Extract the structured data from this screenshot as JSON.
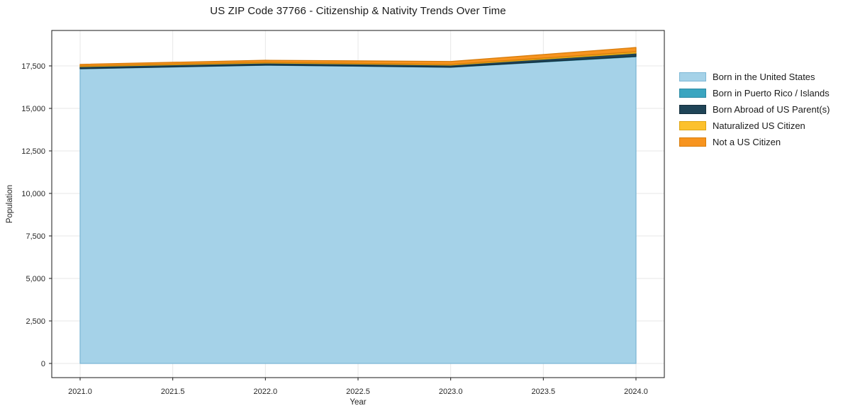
{
  "chart_data": {
    "type": "area",
    "stacked": true,
    "title": "US ZIP Code 37766 - Citizenship & Nativity Trends Over Time",
    "xlabel": "Year",
    "ylabel": "Population",
    "x": [
      2021,
      2022,
      2023,
      2024
    ],
    "series": [
      {
        "name": "Born in the United States",
        "color": "#a5d2e8",
        "edge_color": "#7eb8d6",
        "values": [
          17330,
          17540,
          17420,
          18040
        ]
      },
      {
        "name": "Born in Puerto Rico / Islands",
        "color": "#3aa5c0",
        "edge_color": "#2c8aa4",
        "values": [
          10,
          10,
          10,
          20
        ]
      },
      {
        "name": "Born Abroad of US Parent(s)",
        "color": "#1f4457",
        "edge_color": "#142e3c",
        "values": [
          120,
          120,
          120,
          190
        ]
      },
      {
        "name": "Naturalized US Citizen",
        "color": "#fcc12d",
        "edge_color": "#dfa512",
        "values": [
          40,
          40,
          40,
          80
        ]
      },
      {
        "name": "Not a US Citizen",
        "color": "#f7941f",
        "edge_color": "#d77c0c",
        "values": [
          90,
          120,
          170,
          250
        ]
      }
    ],
    "x_ticks": {
      "values": [
        2021,
        2021.5,
        2022,
        2022.5,
        2023,
        2023.5,
        2024
      ],
      "labels": [
        "2021.0",
        "2021.5",
        "2022.0",
        "2022.5",
        "2023.0",
        "2023.5",
        "2024.0"
      ]
    },
    "y_ticks": {
      "values": [
        0,
        2500,
        5000,
        7500,
        10000,
        12500,
        15000,
        17500
      ],
      "labels": [
        "0",
        "2,500",
        "5,000",
        "7,500",
        "10,000",
        "12,500",
        "15,000",
        "17,500"
      ]
    },
    "xlim": [
      2020.69,
      2024.31
    ],
    "ylim": [
      -835,
      19585
    ],
    "grid": true,
    "grid_color": "#e7e7e7",
    "axis_color": "#1a1a1a",
    "text_color": "#262626",
    "legend_position": "right"
  }
}
